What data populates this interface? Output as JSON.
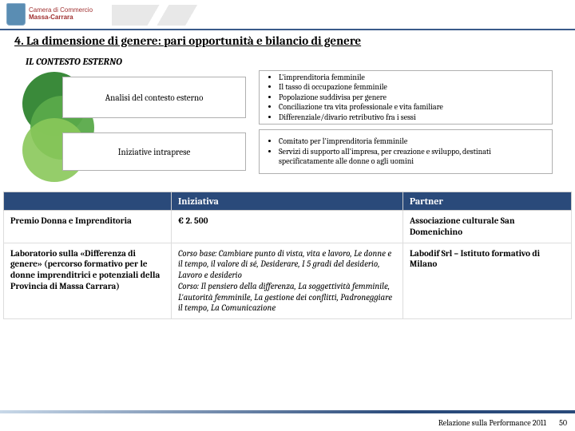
{
  "header": {
    "org1": "Camera di Commercio",
    "org2": "Massa-Carrara"
  },
  "title": "4. La dimensione di genere: pari opportunità e bilancio di genere",
  "subtitle": "IL CONTESTO ESTERNO",
  "diagram": {
    "box1_label": "Analisi del contesto esterno",
    "box2_label": "Iniziative intraprese",
    "bullets1": [
      "L'imprenditoria femminile",
      "Il tasso di occupazione femminile",
      "Popolazione suddivisa per genere",
      "Conciliazione tra vita professionale e vita familiare",
      "Differenziale/divario retributivo fra i sessi"
    ],
    "bullets2": [
      "Comitato per l'imprenditoria femminile",
      "Servizi di supporto all'impresa, per creazione e sviluppo, destinati specificatamente alle donne o agli uomini"
    ],
    "colors": {
      "c1": "#3a8a3a",
      "c2": "#5aaa4a",
      "c3": "#8ac85a"
    }
  },
  "table": {
    "headers": [
      "",
      "Iniziativa",
      "Partner"
    ],
    "rows": [
      {
        "c0": "Premio Donna e Imprenditoria",
        "c1": "€ 2. 500",
        "c2": "Associazione culturale San Domenichino"
      },
      {
        "c0": "Laboratorio sulla «Differenza di genere» (percorso formativo per le donne imprenditrici e potenziali della Provincia di Massa Carrara)",
        "c1_pre": "Corso base: ",
        "c1_italic1": "Cambiare punto di vista, vita e lavoro, Le donne e il tempo, il valore di sé, Desiderare, I 5 gradi del desiderio, Lavoro e desiderio",
        "c1_mid": "Corso: ",
        "c1_italic2": "Il pensiero della differenza, La soggettività femminile, L'autorità femminile, La gestione dei conflitti, Padroneggiare il tempo, La Comunicazione",
        "c2": "Labodif Srl – Istituto formativo di Milano"
      }
    ],
    "header_bg": "#2a4a7a"
  },
  "footer": {
    "text": "Relazione sulla Performance 2011",
    "page": "50"
  }
}
